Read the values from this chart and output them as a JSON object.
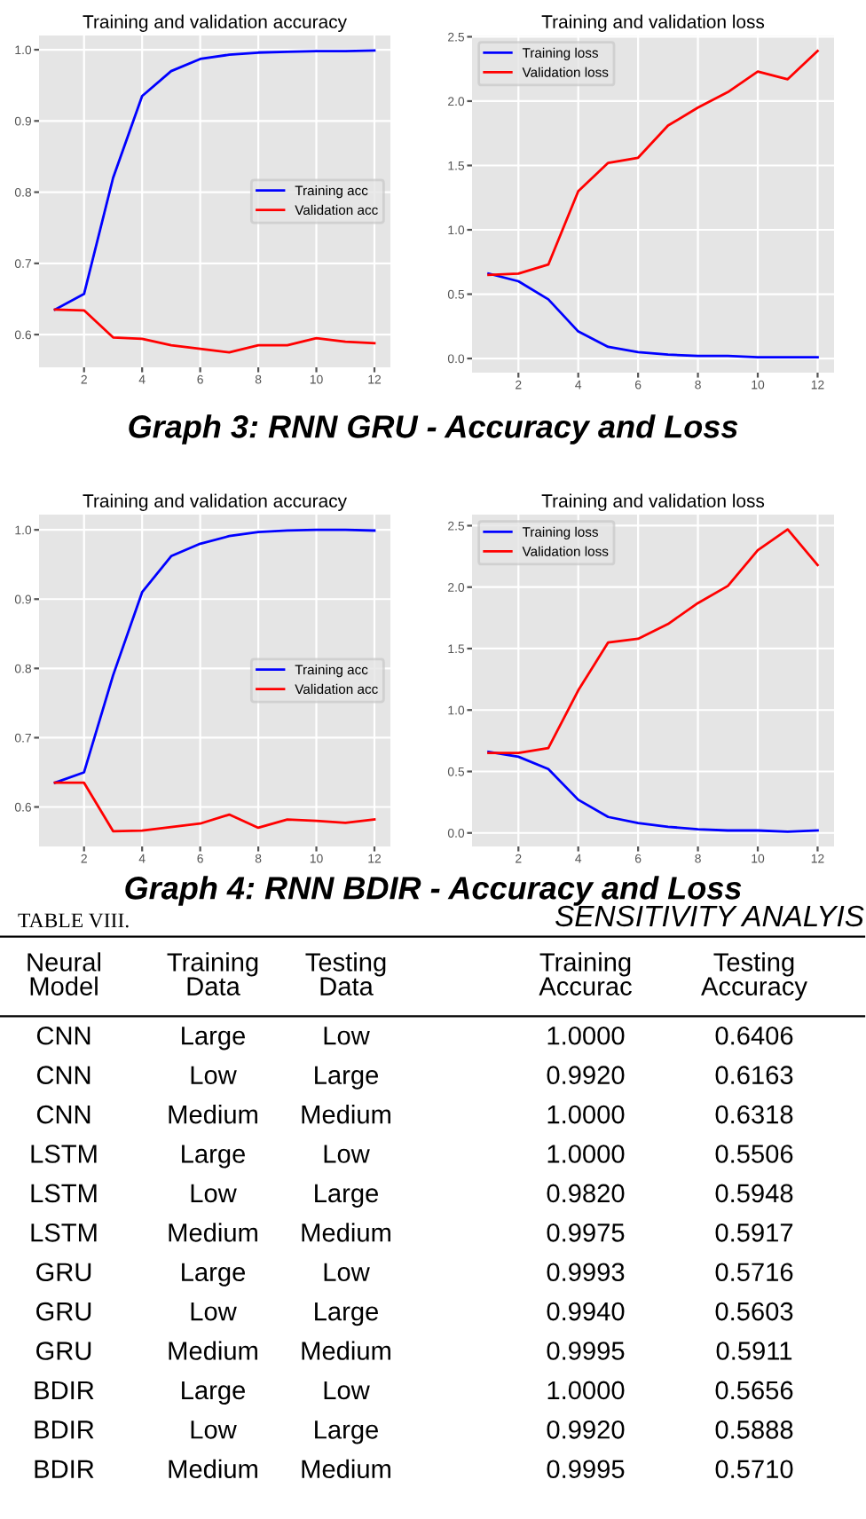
{
  "chart_data": [
    {
      "type": "line",
      "title": "Training and validation accuracy",
      "x": [
        1,
        2,
        3,
        4,
        5,
        6,
        7,
        8,
        9,
        10,
        11,
        12
      ],
      "xlim": [
        0.45,
        12.55
      ],
      "xticks": [
        2,
        4,
        6,
        8,
        10,
        12
      ],
      "ylim": [
        0.554,
        1.02
      ],
      "yticks": [
        0.6,
        0.7,
        0.8,
        0.9,
        {
          "value": 1,
          "label": "1.0"
        }
      ],
      "grid": true,
      "legend": "center right",
      "annotations": [
        "Graph 3: RNN GRU - Accuracy and Loss"
      ],
      "series": [
        {
          "name": "Training acc",
          "color": "#0000ff",
          "values": [
            0.635,
            0.657,
            0.82,
            0.935,
            0.97,
            0.987,
            0.993,
            0.996,
            0.997,
            0.998,
            0.998,
            0.999
          ]
        },
        {
          "name": "Validation acc",
          "color": "#ff0000",
          "values": [
            0.635,
            0.634,
            0.596,
            0.594,
            0.585,
            0.58,
            0.575,
            0.585,
            0.585,
            0.595,
            0.59,
            0.588
          ]
        }
      ]
    },
    {
      "type": "line",
      "title": "Training and validation loss",
      "x": [
        1,
        2,
        3,
        4,
        5,
        6,
        7,
        8,
        9,
        10,
        11,
        12
      ],
      "xlim": [
        0.45,
        12.55
      ],
      "xticks": [
        2,
        4,
        6,
        8,
        10,
        12
      ],
      "ylim": [
        -0.11,
        2.51
      ],
      "yticks": [
        {
          "value": 0,
          "label": "0.0"
        },
        0.5,
        {
          "value": 1,
          "label": "1.0"
        },
        1.5,
        {
          "value": 2,
          "label": "2.0"
        },
        2.5
      ],
      "grid": true,
      "legend": "top left",
      "series": [
        {
          "name": "Training loss",
          "color": "#0000ff",
          "values": [
            0.66,
            0.6,
            0.46,
            0.21,
            0.09,
            0.05,
            0.03,
            0.02,
            0.02,
            0.01,
            0.01,
            0.01
          ]
        },
        {
          "name": "Validation loss",
          "color": "#ff0000",
          "values": [
            0.65,
            0.66,
            0.73,
            1.3,
            1.52,
            1.56,
            1.81,
            1.95,
            2.07,
            2.23,
            2.17,
            2.39
          ]
        }
      ]
    },
    {
      "type": "line",
      "title": "Training and validation accuracy",
      "x": [
        1,
        2,
        3,
        4,
        5,
        6,
        7,
        8,
        9,
        10,
        11,
        12
      ],
      "xlim": [
        0.45,
        12.55
      ],
      "xticks": [
        2,
        4,
        6,
        8,
        10,
        12
      ],
      "ylim": [
        0.543,
        1.022
      ],
      "yticks": [
        0.6,
        0.7,
        0.8,
        0.9,
        {
          "value": 1,
          "label": "1.0"
        }
      ],
      "grid": true,
      "legend": "center right",
      "annotations": [
        "Graph 4: RNN BDIR - Accuracy and Loss"
      ],
      "series": [
        {
          "name": "Training acc",
          "color": "#0000ff",
          "values": [
            0.635,
            0.65,
            0.79,
            0.91,
            0.962,
            0.98,
            0.991,
            0.997,
            0.999,
            1.0,
            1.0,
            0.999
          ]
        },
        {
          "name": "Validation acc",
          "color": "#ff0000",
          "values": [
            0.635,
            0.635,
            0.565,
            0.566,
            0.571,
            0.576,
            0.589,
            0.57,
            0.582,
            0.58,
            0.577,
            0.582
          ]
        }
      ]
    },
    {
      "type": "line",
      "title": "Training and validation loss",
      "x": [
        1,
        2,
        3,
        4,
        5,
        6,
        7,
        8,
        9,
        10,
        11,
        12
      ],
      "xlim": [
        0.45,
        12.55
      ],
      "xticks": [
        2,
        4,
        6,
        8,
        10,
        12
      ],
      "ylim": [
        -0.11,
        2.59
      ],
      "yticks": [
        {
          "value": 0,
          "label": "0.0"
        },
        0.5,
        {
          "value": 1,
          "label": "1.0"
        },
        1.5,
        {
          "value": 2,
          "label": "2.0"
        },
        2.5
      ],
      "grid": true,
      "legend": "top left",
      "series": [
        {
          "name": "Training loss",
          "color": "#0000ff",
          "values": [
            0.66,
            0.62,
            0.52,
            0.27,
            0.13,
            0.08,
            0.05,
            0.03,
            0.02,
            0.02,
            0.01,
            0.02
          ]
        },
        {
          "name": "Validation loss",
          "color": "#ff0000",
          "values": [
            0.65,
            0.65,
            0.69,
            1.16,
            1.55,
            1.58,
            1.7,
            1.87,
            2.01,
            2.3,
            2.47,
            2.18
          ]
        }
      ]
    },
    {
      "type": "other",
      "subtitle": "TABLE VIII.",
      "title": "SENSITIVITY ANALYIS",
      "annotations": [
        "Neural\nModel",
        "Training\nData",
        "Testing\nData",
        "Training\nAccurac",
        "Testing\nAccuracy",
        "CNN",
        "Large",
        "Low",
        "1.0000",
        "0.6406",
        "CNN",
        "Low",
        "Large",
        "0.9920",
        "0.6163",
        "CNN",
        "Medium",
        "Medium",
        "1.0000",
        "0.6318",
        "LSTM",
        "Large",
        "Low",
        "1.0000",
        "0.5506",
        "LSTM",
        "Low",
        "Large",
        "0.9820",
        "0.5948",
        "LSTM",
        "Medium",
        "Medium",
        "0.9975",
        "0.5917",
        "GRU",
        "Large",
        "Low",
        "0.9993",
        "0.5716",
        "GRU",
        "Low",
        "Large",
        "0.9940",
        "0.5603",
        "GRU",
        "Medium",
        "Medium",
        "0.9995",
        "0.5911",
        "BDIR",
        "Large",
        "Low",
        "1.0000",
        "0.5656",
        "BDIR",
        "Low",
        "Large",
        "0.9920",
        "0.5888",
        "BDIR",
        "Medium",
        "Medium",
        "0.9995",
        "0.5710"
      ]
    }
  ]
}
